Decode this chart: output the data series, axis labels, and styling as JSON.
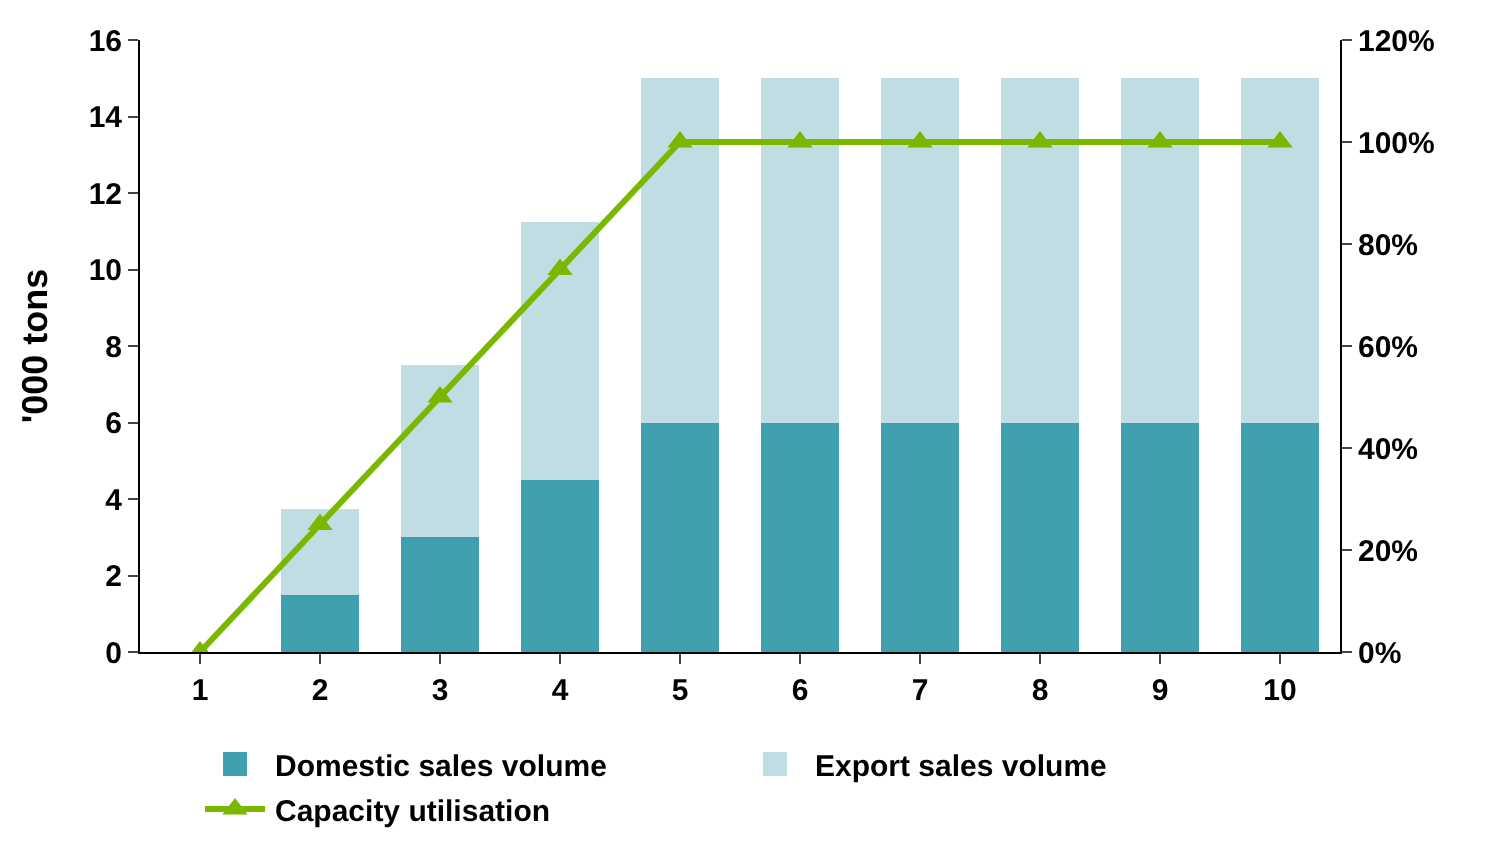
{
  "chart_data": {
    "type": "bar",
    "stacked": true,
    "ylabel": "'000 tons",
    "categories": [
      "1",
      "2",
      "3",
      "4",
      "5",
      "6",
      "7",
      "8",
      "9",
      "10"
    ],
    "series": [
      {
        "name": "Domestic sales volume",
        "color": "#3f9fae",
        "values": [
          0,
          1.5,
          3,
          4.5,
          6,
          6,
          6,
          6,
          6,
          6
        ]
      },
      {
        "name": "Export sales volume",
        "color": "#bfdde3",
        "values": [
          0,
          2.25,
          4.5,
          6.75,
          9,
          9,
          9,
          9,
          9,
          9
        ]
      },
      {
        "name": "Capacity utilisation",
        "type": "line",
        "axis": "y2",
        "color": "#7ab800",
        "marker": "triangle",
        "values": [
          0,
          25,
          50,
          75,
          100,
          100,
          100,
          100,
          100,
          100
        ]
      }
    ],
    "ylim": [
      0,
      16
    ],
    "yticks": [
      0,
      2,
      4,
      6,
      8,
      10,
      12,
      14,
      16
    ],
    "y2lim": [
      0,
      120
    ],
    "y2ticks": [
      {
        "value": 0,
        "label": "0%"
      },
      {
        "value": 20,
        "label": "20%"
      },
      {
        "value": 40,
        "label": "40%"
      },
      {
        "value": 60,
        "label": "60%"
      },
      {
        "value": 80,
        "label": "80%"
      },
      {
        "value": 100,
        "label": "100%"
      },
      {
        "value": 120,
        "label": "120%"
      }
    ],
    "legend": "bottom"
  }
}
